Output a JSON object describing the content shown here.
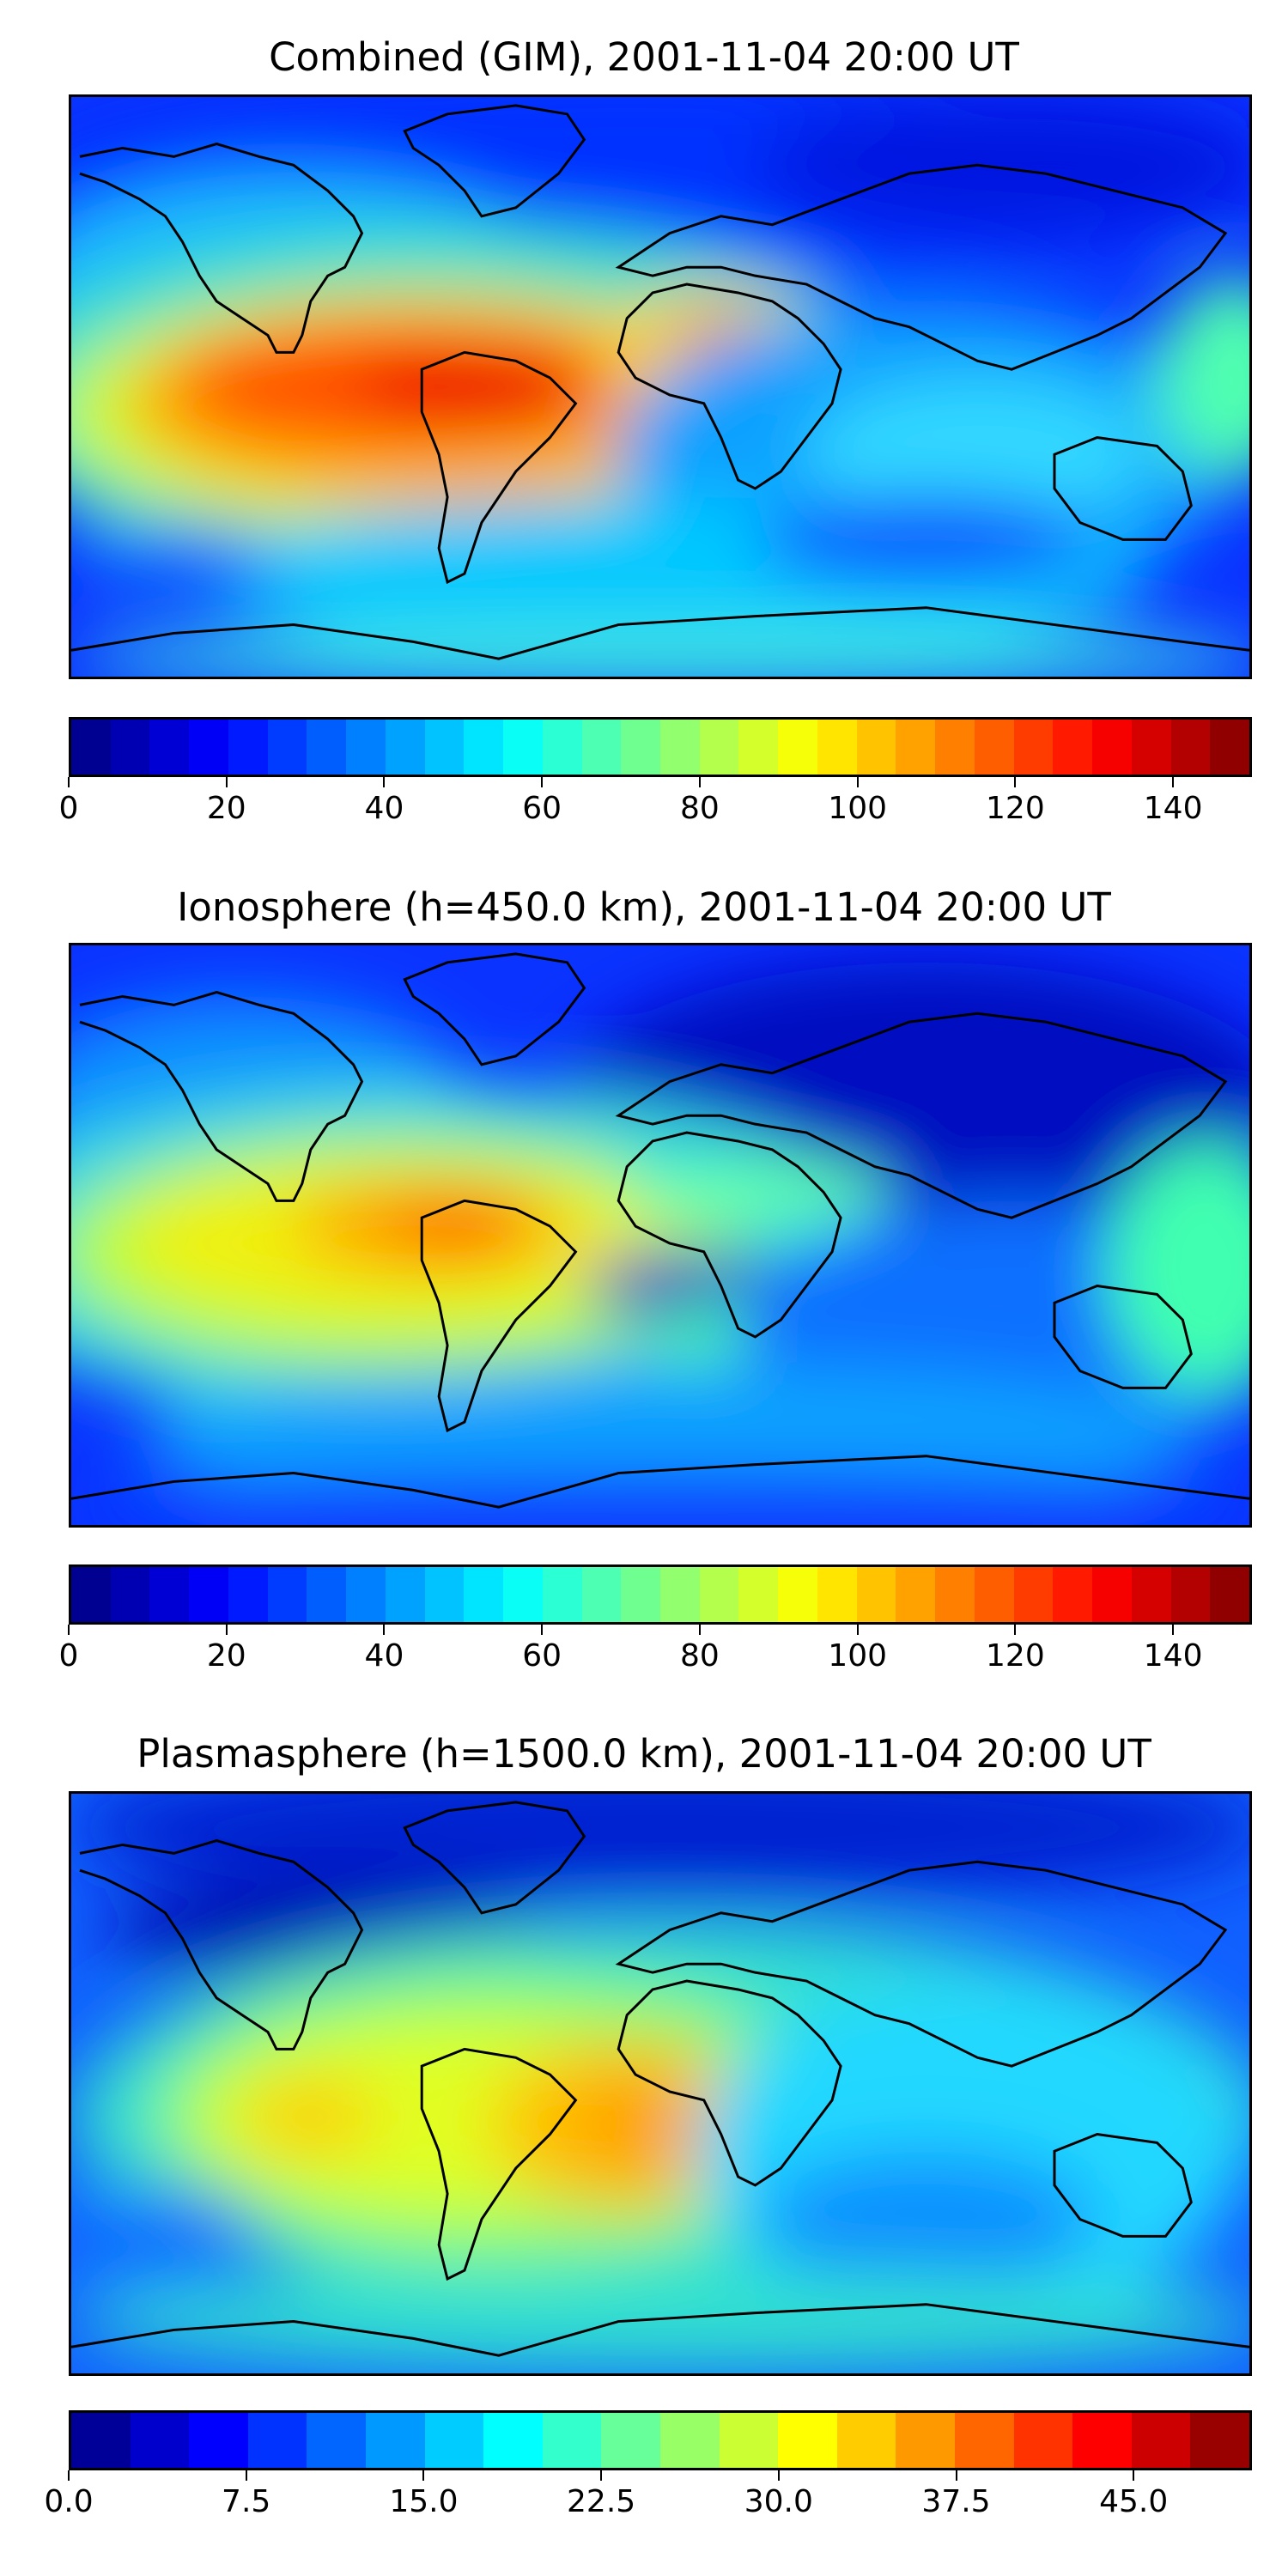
{
  "panels": [
    {
      "title": "Combined (GIM), 2001-11-04 20:00 UT",
      "colorbar": {
        "min": 0,
        "max": 150,
        "levels": 30,
        "ticks": [
          "0",
          "20",
          "40",
          "60",
          "80",
          "100",
          "120",
          "140"
        ],
        "tick_values": [
          0,
          20,
          40,
          60,
          80,
          100,
          120,
          140
        ]
      }
    },
    {
      "title": "Ionosphere  (h=450.0 km), 2001-11-04 20:00 UT",
      "colorbar": {
        "min": 0,
        "max": 150,
        "levels": 30,
        "ticks": [
          "0",
          "20",
          "40",
          "60",
          "80",
          "100",
          "120",
          "140"
        ],
        "tick_values": [
          0,
          20,
          40,
          60,
          80,
          100,
          120,
          140
        ]
      }
    },
    {
      "title": "Plasmasphere (h=1500.0 km), 2001-11-04 20:00 UT",
      "colorbar": {
        "min": 0,
        "max": 50,
        "levels": 20,
        "ticks": [
          "0.0",
          "7.5",
          "15.0",
          "22.5",
          "30.0",
          "37.5",
          "45.0"
        ],
        "tick_values": [
          0,
          7.5,
          15,
          22.5,
          30,
          37.5,
          45
        ]
      }
    }
  ],
  "colormap": "jet"
}
